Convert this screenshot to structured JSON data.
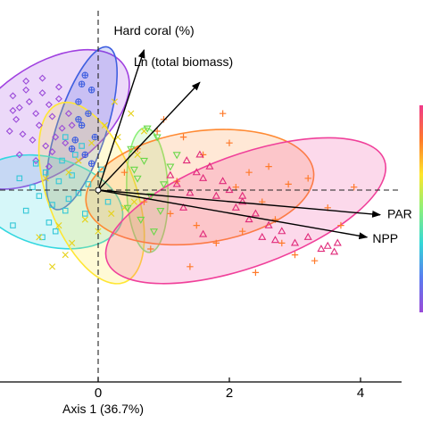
{
  "chart_data": {
    "type": "scatter",
    "title": "",
    "xlabel": "Axis 1 (36.7%)",
    "ylabel": "",
    "xlim": [
      -1.45,
      4.55
    ],
    "ylim": [
      -2.95,
      2.7
    ],
    "x_ticks": [
      0,
      2,
      4
    ],
    "x_tick_labels": [
      "0",
      "2",
      "4"
    ],
    "reference_lines": {
      "x": 0,
      "y": 0,
      "style": "dashed"
    },
    "colorbar": {
      "position": "right-edge",
      "colors": [
        "#f03a8a",
        "#ff7a2a",
        "#ffe62a",
        "#8cf07a",
        "#33d7d7",
        "#5a7cf0",
        "#9a4ad8"
      ]
    },
    "vectors": [
      {
        "label": "Hard coral (%)",
        "x": 0.7,
        "y": 2.38
      },
      {
        "label": "Ln (total biomass)",
        "x": 1.55,
        "y": 1.83
      },
      {
        "label": "PAR",
        "x": 4.3,
        "y": -0.42
      },
      {
        "label": "NPP",
        "x": 4.1,
        "y": -0.8
      }
    ],
    "ellipses": [
      {
        "name": "",
        "color": "#a040e0",
        "cx": -0.8,
        "cy": 1.2,
        "rx": 1.45,
        "ry": 0.9,
        "angle_deg": -35
      },
      {
        "name": "",
        "color": "#3f5fe0",
        "cx": -0.25,
        "cy": 1.05,
        "rx": 1.3,
        "ry": 0.42,
        "angle_deg": -72
      },
      {
        "name": "",
        "color": "#33d7e0",
        "cx": -0.75,
        "cy": -0.2,
        "rx": 1.15,
        "ry": 0.75,
        "angle_deg": 15
      },
      {
        "name": "",
        "color": "#ffe633",
        "cx": -0.1,
        "cy": -0.05,
        "rx": 1.45,
        "ry": 0.75,
        "angle_deg": 70
      },
      {
        "name": "",
        "color": "#8cf07a",
        "cx": 0.75,
        "cy": 0.0,
        "rx": 0.95,
        "ry": 0.35,
        "angle_deg": 88
      },
      {
        "name": "",
        "color": "#ff8a33",
        "cx": 1.55,
        "cy": 0.05,
        "rx": 1.75,
        "ry": 0.95,
        "angle_deg": -8
      },
      {
        "name": "",
        "color": "#f0409a",
        "cx": 2.25,
        "cy": -0.35,
        "rx": 2.25,
        "ry": 0.95,
        "angle_deg": -20
      }
    ],
    "series": [
      {
        "name": "",
        "color": "#9a4ad8",
        "marker": "diamond",
        "x": [
          -1.3,
          -1.2,
          -1.1,
          -1.25,
          -1.05,
          -0.95,
          -0.85,
          -0.9,
          -0.75,
          -0.7,
          -0.6,
          -0.55,
          -1.15,
          -1.0,
          -0.8,
          -0.65,
          -1.35,
          -1.2,
          -0.95,
          -0.7,
          -0.5,
          -0.45,
          -1.1,
          -0.85,
          -1.3,
          -0.6,
          -0.4,
          -0.75
        ],
        "y": [
          1.6,
          1.4,
          1.7,
          1.2,
          1.5,
          1.3,
          1.65,
          1.1,
          1.45,
          1.25,
          1.55,
          1.05,
          0.95,
          0.85,
          0.75,
          0.9,
          1.0,
          0.6,
          0.5,
          0.65,
          0.8,
          1.3,
          1.85,
          1.9,
          1.35,
          1.75,
          1.1,
          0.4
        ]
      },
      {
        "name": "",
        "color": "#3f5fe0",
        "marker": "circle-plus",
        "x": [
          -0.2,
          -0.1,
          -0.3,
          -0.15,
          -0.25,
          -0.05,
          -0.35,
          -0.2,
          -0.4,
          -0.1,
          -0.3,
          -0.25
        ],
        "y": [
          1.95,
          1.7,
          1.5,
          1.3,
          1.1,
          0.9,
          0.85,
          0.6,
          0.7,
          0.45,
          1.2,
          1.8
        ]
      },
      {
        "name": "",
        "color": "#33c7d7",
        "marker": "square",
        "x": [
          -1.2,
          -1.0,
          -0.9,
          -0.8,
          -0.7,
          -0.6,
          -0.5,
          -0.4,
          -0.3,
          -0.2,
          -0.95,
          -0.75,
          -0.55,
          -0.35,
          -1.1,
          -0.65,
          -0.45,
          -0.85,
          -1.3,
          -0.15,
          0.05,
          0.15,
          -0.25,
          -0.5
        ],
        "y": [
          0.2,
          0.05,
          -0.1,
          0.3,
          -0.25,
          0.15,
          -0.35,
          0.25,
          -0.05,
          -0.4,
          0.45,
          -0.55,
          0.5,
          0.6,
          -0.35,
          -0.7,
          -0.15,
          -0.8,
          -0.6,
          0.1,
          0.35,
          -0.2,
          0.75,
          0.9
        ]
      },
      {
        "name": "",
        "color": "#e6d21a",
        "marker": "x",
        "x": [
          -0.9,
          -0.6,
          -0.4,
          -0.2,
          0.0,
          0.2,
          0.4,
          -0.5,
          -0.3,
          -0.1,
          0.1,
          0.3,
          -0.7,
          -0.8,
          0.5,
          0.6,
          -0.45,
          0.25,
          0.7,
          0.55
        ],
        "y": [
          -0.8,
          -0.6,
          -0.9,
          -0.5,
          -0.7,
          -0.4,
          -0.3,
          -1.1,
          0.5,
          0.8,
          1.1,
          0.9,
          -1.3,
          0.2,
          1.3,
          0.6,
          0.3,
          1.5,
          1.0,
          -0.2
        ]
      },
      {
        "name": "",
        "color": "#6ad84a",
        "marker": "triangle-down",
        "x": [
          0.5,
          0.7,
          0.9,
          1.1,
          0.6,
          0.8,
          1.0,
          0.45,
          0.65,
          0.85,
          1.2,
          0.75,
          0.55,
          0.95
        ],
        "y": [
          0.7,
          0.5,
          0.9,
          0.4,
          0.2,
          -0.1,
          0.1,
          -0.3,
          -0.5,
          -0.7,
          0.6,
          1.05,
          0.35,
          -0.35
        ]
      },
      {
        "name": "",
        "color": "#ff7a2a",
        "marker": "plus",
        "x": [
          0.6,
          0.9,
          1.3,
          1.6,
          2.0,
          2.3,
          2.6,
          2.9,
          3.2,
          3.5,
          1.1,
          1.5,
          1.8,
          2.2,
          2.7,
          3.0,
          0.8,
          1.4,
          2.4,
          3.3,
          3.7,
          1.0,
          1.9,
          2.8,
          0.4,
          2.1,
          1.2,
          2.5,
          3.9,
          0.7
        ],
        "y": [
          0.7,
          1.0,
          0.9,
          0.6,
          0.8,
          0.3,
          0.4,
          0.1,
          0.2,
          -0.3,
          -0.4,
          -0.6,
          -0.9,
          -0.7,
          -0.5,
          -1.1,
          -1.0,
          -1.3,
          -1.4,
          -1.2,
          -0.6,
          1.2,
          1.3,
          -0.9,
          0.3,
          0.05,
          0.15,
          -0.2,
          0.05,
          -0.2
        ]
      },
      {
        "name": "",
        "color": "#e02a7a",
        "marker": "triangle",
        "x": [
          1.2,
          1.4,
          1.6,
          1.8,
          2.0,
          2.2,
          2.4,
          2.6,
          2.8,
          3.0,
          3.2,
          3.4,
          3.6,
          1.5,
          1.7,
          1.9,
          2.1,
          2.3,
          2.5,
          1.3,
          1.6,
          2.2,
          3.5,
          3.65,
          1.1,
          1.35,
          1.55,
          2.7
        ],
        "y": [
          0.1,
          -0.05,
          0.2,
          -0.1,
          0.0,
          -0.2,
          -0.4,
          -0.6,
          -0.7,
          -0.9,
          -0.8,
          -1.0,
          -1.05,
          0.3,
          0.4,
          0.15,
          -0.3,
          -0.5,
          -0.8,
          -0.3,
          -0.75,
          -0.1,
          -0.95,
          -0.9,
          0.25,
          0.5,
          0.6,
          -0.85
        ]
      }
    ]
  }
}
